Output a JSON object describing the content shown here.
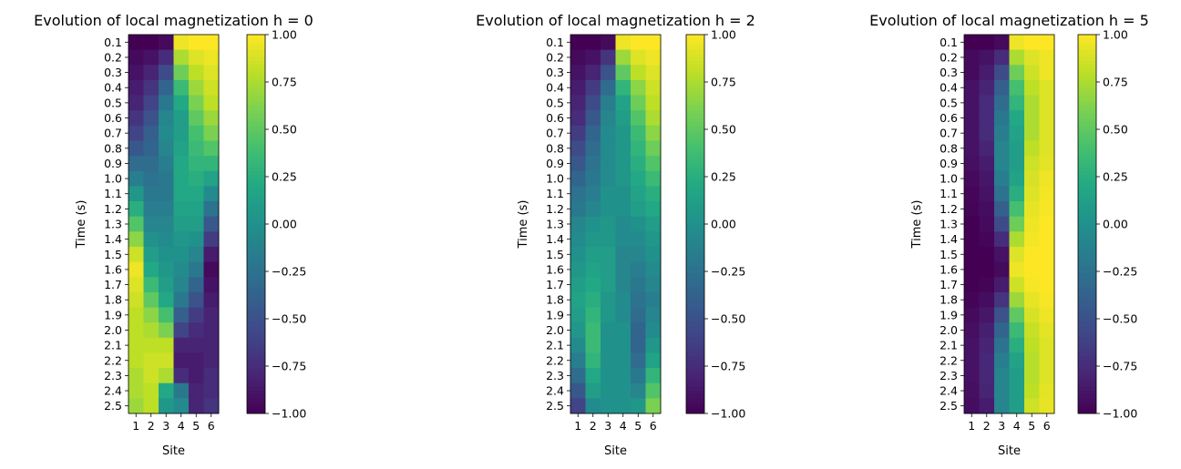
{
  "figure": {
    "colorbar_ticks": [
      "1.00",
      "0.75",
      "0.50",
      "0.25",
      "0.00",
      "−0.25",
      "−0.50",
      "−0.75",
      "−1.00"
    ]
  },
  "chart_data": [
    {
      "type": "heatmap",
      "title": "Evolution of local magnetization h = 0",
      "xlabel": "Site",
      "ylabel": "Time (s)",
      "x": [
        "1",
        "2",
        "3",
        "4",
        "5",
        "6"
      ],
      "y": [
        "0.1",
        "0.2",
        "0.3",
        "0.4",
        "0.5",
        "0.6",
        "0.7",
        "0.8",
        "0.9",
        "1.0",
        "1.1",
        "1.2",
        "1.3",
        "1.4",
        "1.5",
        "1.6",
        "1.7",
        "1.8",
        "1.9",
        "2.0",
        "2.1",
        "2.2",
        "2.3",
        "2.4",
        "2.5"
      ],
      "colormap": "viridis",
      "clim": [
        -1.0,
        1.0
      ],
      "values": [
        [
          -1.0,
          -1.0,
          -0.95,
          0.95,
          1.0,
          1.0
        ],
        [
          -0.95,
          -0.9,
          -0.75,
          0.75,
          0.9,
          0.95
        ],
        [
          -0.9,
          -0.8,
          -0.55,
          0.55,
          0.8,
          0.9
        ],
        [
          -0.85,
          -0.7,
          -0.35,
          0.35,
          0.7,
          0.85
        ],
        [
          -0.8,
          -0.6,
          -0.2,
          0.2,
          0.6,
          0.8
        ],
        [
          -0.7,
          -0.5,
          -0.1,
          0.1,
          0.5,
          0.7
        ],
        [
          -0.6,
          -0.4,
          -0.05,
          0.1,
          0.4,
          0.6
        ],
        [
          -0.45,
          -0.35,
          -0.1,
          0.15,
          0.35,
          0.45
        ],
        [
          -0.3,
          -0.3,
          -0.15,
          0.2,
          0.3,
          0.3
        ],
        [
          -0.15,
          -0.25,
          -0.2,
          0.2,
          0.25,
          0.15
        ],
        [
          0.05,
          -0.2,
          -0.2,
          0.2,
          0.2,
          -0.05
        ],
        [
          0.25,
          -0.15,
          -0.15,
          0.15,
          0.15,
          -0.25
        ],
        [
          0.45,
          -0.1,
          -0.1,
          0.1,
          0.1,
          -0.45
        ],
        [
          0.65,
          0.0,
          -0.05,
          0.05,
          0.0,
          -0.65
        ],
        [
          0.85,
          0.1,
          0.0,
          0.0,
          -0.1,
          -0.85
        ],
        [
          0.95,
          0.2,
          0.05,
          -0.05,
          -0.2,
          -0.95
        ],
        [
          0.9,
          0.35,
          0.1,
          -0.1,
          -0.35,
          -0.9
        ],
        [
          0.85,
          0.5,
          0.2,
          -0.2,
          -0.5,
          -0.85
        ],
        [
          0.8,
          0.65,
          0.4,
          -0.4,
          -0.65,
          -0.8
        ],
        [
          0.8,
          0.75,
          0.6,
          -0.6,
          -0.75,
          -0.8
        ],
        [
          0.8,
          0.8,
          0.8,
          -0.8,
          -0.8,
          -0.8
        ],
        [
          0.8,
          0.85,
          0.85,
          -0.85,
          -0.85,
          -0.8
        ],
        [
          0.75,
          0.85,
          0.75,
          -0.75,
          -0.85,
          -0.75
        ],
        [
          0.75,
          0.8,
          0.2,
          -0.2,
          -0.8,
          -0.75
        ],
        [
          0.7,
          0.8,
          0.05,
          -0.05,
          -0.8,
          -0.7
        ]
      ]
    },
    {
      "type": "heatmap",
      "title": "Evolution of local magnetization h = 2",
      "xlabel": "Site",
      "ylabel": "Time (s)",
      "x": [
        "1",
        "2",
        "3",
        "4",
        "5",
        "6"
      ],
      "y": [
        "0.1",
        "0.2",
        "0.3",
        "0.4",
        "0.5",
        "0.6",
        "0.7",
        "0.8",
        "0.9",
        "1.0",
        "1.1",
        "1.2",
        "1.3",
        "1.4",
        "1.5",
        "1.6",
        "1.7",
        "1.8",
        "1.9",
        "2.0",
        "2.1",
        "2.2",
        "2.3",
        "2.4",
        "2.5"
      ],
      "colormap": "viridis",
      "clim": [
        -1.0,
        1.0
      ],
      "values": [
        [
          -1.0,
          -1.0,
          -0.95,
          0.95,
          1.0,
          1.0
        ],
        [
          -0.95,
          -0.9,
          -0.7,
          0.7,
          0.9,
          0.95
        ],
        [
          -0.9,
          -0.8,
          -0.5,
          0.5,
          0.8,
          0.9
        ],
        [
          -0.85,
          -0.65,
          -0.3,
          0.3,
          0.65,
          0.85
        ],
        [
          -0.8,
          -0.55,
          -0.15,
          0.15,
          0.55,
          0.8
        ],
        [
          -0.75,
          -0.45,
          -0.1,
          0.1,
          0.45,
          0.75
        ],
        [
          -0.65,
          -0.35,
          -0.05,
          0.05,
          0.35,
          0.65
        ],
        [
          -0.55,
          -0.3,
          -0.05,
          0.05,
          0.3,
          0.55
        ],
        [
          -0.45,
          -0.25,
          -0.05,
          0.05,
          0.25,
          0.45
        ],
        [
          -0.35,
          -0.2,
          -0.05,
          0.05,
          0.2,
          0.35
        ],
        [
          -0.25,
          -0.15,
          0.0,
          0.0,
          0.15,
          0.25
        ],
        [
          -0.2,
          -0.1,
          0.0,
          0.0,
          0.1,
          0.2
        ],
        [
          -0.1,
          0.0,
          0.05,
          -0.05,
          0.0,
          0.1
        ],
        [
          -0.05,
          0.05,
          0.05,
          -0.05,
          -0.05,
          0.05
        ],
        [
          0.0,
          0.1,
          0.1,
          -0.1,
          -0.1,
          0.0
        ],
        [
          0.05,
          0.15,
          0.1,
          -0.1,
          -0.15,
          -0.05
        ],
        [
          0.1,
          0.2,
          0.1,
          -0.1,
          -0.2,
          -0.1
        ],
        [
          0.15,
          0.25,
          0.05,
          -0.05,
          -0.25,
          -0.15
        ],
        [
          0.1,
          0.3,
          0.05,
          -0.05,
          -0.3,
          -0.1
        ],
        [
          0.05,
          0.35,
          0.0,
          0.0,
          -0.35,
          -0.05
        ],
        [
          -0.05,
          0.35,
          0.0,
          0.0,
          -0.35,
          0.05
        ],
        [
          -0.15,
          0.3,
          0.0,
          0.0,
          -0.3,
          0.15
        ],
        [
          -0.3,
          0.2,
          0.0,
          0.0,
          -0.2,
          0.3
        ],
        [
          -0.45,
          0.1,
          0.0,
          0.0,
          -0.1,
          0.45
        ],
        [
          -0.6,
          -0.05,
          0.0,
          0.0,
          0.05,
          0.6
        ]
      ]
    },
    {
      "type": "heatmap",
      "title": "Evolution of local magnetization h = 5",
      "xlabel": "Site",
      "ylabel": "Time (s)",
      "x": [
        "1",
        "2",
        "3",
        "4",
        "5",
        "6"
      ],
      "y": [
        "0.1",
        "0.2",
        "0.3",
        "0.4",
        "0.5",
        "0.6",
        "0.7",
        "0.8",
        "0.9",
        "1.0",
        "1.1",
        "1.2",
        "1.3",
        "1.4",
        "1.5",
        "1.6",
        "1.7",
        "1.8",
        "1.9",
        "2.0",
        "2.1",
        "2.2",
        "2.3",
        "2.4",
        "2.5"
      ],
      "colormap": "viridis",
      "clim": [
        -1.0,
        1.0
      ],
      "values": [
        [
          -1.0,
          -1.0,
          -0.95,
          0.95,
          1.0,
          1.0
        ],
        [
          -0.95,
          -0.9,
          -0.75,
          0.75,
          0.9,
          0.95
        ],
        [
          -0.95,
          -0.85,
          -0.55,
          0.55,
          0.85,
          0.95
        ],
        [
          -0.9,
          -0.8,
          -0.4,
          0.4,
          0.8,
          0.9
        ],
        [
          -0.9,
          -0.75,
          -0.3,
          0.3,
          0.75,
          0.9
        ],
        [
          -0.9,
          -0.75,
          -0.2,
          0.2,
          0.75,
          0.9
        ],
        [
          -0.9,
          -0.75,
          -0.15,
          0.15,
          0.75,
          0.9
        ],
        [
          -0.9,
          -0.8,
          -0.1,
          0.1,
          0.8,
          0.9
        ],
        [
          -0.92,
          -0.85,
          -0.1,
          0.1,
          0.85,
          0.92
        ],
        [
          -0.95,
          -0.88,
          -0.15,
          0.15,
          0.88,
          0.95
        ],
        [
          -0.97,
          -0.9,
          -0.25,
          0.25,
          0.9,
          0.97
        ],
        [
          -0.98,
          -0.93,
          -0.4,
          0.4,
          0.93,
          0.98
        ],
        [
          -1.0,
          -0.95,
          -0.55,
          0.55,
          0.95,
          1.0
        ],
        [
          -1.0,
          -0.97,
          -0.75,
          0.75,
          0.97,
          1.0
        ],
        [
          -1.0,
          -1.0,
          -0.9,
          0.9,
          1.0,
          1.0
        ],
        [
          -1.0,
          -1.0,
          -0.95,
          0.95,
          1.0,
          1.0
        ],
        [
          -1.0,
          -0.98,
          -0.85,
          0.85,
          0.98,
          1.0
        ],
        [
          -0.98,
          -0.93,
          -0.7,
          0.7,
          0.93,
          0.98
        ],
        [
          -0.95,
          -0.88,
          -0.5,
          0.5,
          0.88,
          0.95
        ],
        [
          -0.92,
          -0.83,
          -0.35,
          0.35,
          0.83,
          0.92
        ],
        [
          -0.9,
          -0.8,
          -0.25,
          0.25,
          0.8,
          0.9
        ],
        [
          -0.9,
          -0.78,
          -0.15,
          0.15,
          0.78,
          0.9
        ],
        [
          -0.9,
          -0.78,
          -0.1,
          0.1,
          0.78,
          0.9
        ],
        [
          -0.92,
          -0.8,
          -0.1,
          0.1,
          0.8,
          0.92
        ],
        [
          -0.93,
          -0.85,
          -0.1,
          0.1,
          0.85,
          0.93
        ]
      ]
    }
  ]
}
